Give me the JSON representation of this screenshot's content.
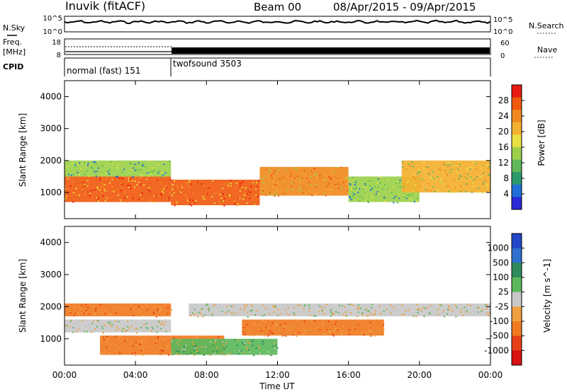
{
  "header": {
    "station": "Inuvik (fitACF)",
    "beam": "Beam 00",
    "date_range": "08/Apr/2015 - 09/Apr/2015"
  },
  "strip_labels": {
    "nsky": "N.Sky",
    "nsearch": "N.Search",
    "freq_line1": "Freq.",
    "freq_line2": "[MHz]",
    "nave": "Nave",
    "cpid": "CPID"
  },
  "noise_ticks_left": [
    "10^5",
    "10^0"
  ],
  "noise_ticks_right": [
    "10^5",
    "10^0"
  ],
  "freq_ticks_left": [
    "18",
    "8"
  ],
  "freq_ticks_right": [
    "60",
    "0"
  ],
  "cpid_segments": [
    {
      "label": "normal (fast) 151",
      "start_hour": 0,
      "end_hour": 6
    },
    {
      "label": "twofsound 3503",
      "start_hour": 6,
      "end_hour": 24
    }
  ],
  "x_axis": {
    "label": "Time UT",
    "ticks": [
      "00:00",
      "04:00",
      "08:00",
      "12:00",
      "16:00",
      "20:00",
      "00:00"
    ]
  },
  "power_panel": {
    "ylabel": "Slant Range [km]",
    "yticks": [
      "4000",
      "3000",
      "2000",
      "1000"
    ],
    "colorbar_label": "Power [dB]",
    "colorbar_ticks": [
      "28",
      "24",
      "20",
      "16",
      "12",
      "8",
      "4"
    ],
    "colors": [
      "#2b2bd8",
      "#1f6fd6",
      "#2a9a6a",
      "#5fb85a",
      "#9cd04a",
      "#e8e040",
      "#f4b030",
      "#f08a20",
      "#f05a10",
      "#e81a10"
    ]
  },
  "velocity_panel": {
    "ylabel": "Slant Range [km]",
    "yticks": [
      "4000",
      "3000",
      "2000",
      "1000"
    ],
    "colorbar_label": "Velocity [m s^-1]",
    "colorbar_ticks": [
      "1000",
      "500",
      "100",
      "25",
      "-25",
      "-100",
      "-500",
      "-1000"
    ],
    "colors": [
      "#2346c8",
      "#2f6fd0",
      "#2e8a5a",
      "#5cb85c",
      "#c8c8c8",
      "#f0a040",
      "#f07a20",
      "#e84018",
      "#d81010"
    ]
  },
  "chart_data": [
    {
      "type": "heatmap",
      "title": "Power",
      "xlabel": "Time UT",
      "ylabel": "Slant Range [km]",
      "xlim": [
        0,
        24
      ],
      "ylim": [
        180,
        4500
      ],
      "colorbar": {
        "label": "Power [dB]",
        "range": [
          0,
          30
        ],
        "ticks": [
          4,
          8,
          12,
          16,
          20,
          24,
          28
        ]
      },
      "bands": [
        {
          "start_hour": 0,
          "end_hour": 6,
          "range_km": [
            700,
            1500
          ],
          "power_db": 28
        },
        {
          "start_hour": 0,
          "end_hour": 6,
          "range_km": [
            1500,
            2000
          ],
          "power_db": 12
        },
        {
          "start_hour": 6,
          "end_hour": 11,
          "range_km": [
            600,
            1400
          ],
          "power_db": 28
        },
        {
          "start_hour": 11,
          "end_hour": 16,
          "range_km": [
            900,
            1800
          ],
          "power_db": 22
        },
        {
          "start_hour": 16,
          "end_hour": 20,
          "range_km": [
            700,
            1500
          ],
          "power_db": 12
        },
        {
          "start_hour": 19,
          "end_hour": 24,
          "range_km": [
            1000,
            2000
          ],
          "power_db": 20
        }
      ]
    },
    {
      "type": "heatmap",
      "title": "Velocity",
      "xlabel": "Time UT",
      "ylabel": "Slant Range [km]",
      "xlim": [
        0,
        24
      ],
      "ylim": [
        180,
        4500
      ],
      "colorbar": {
        "label": "Velocity [m s^-1]",
        "range": [
          -1000,
          1000
        ],
        "ticks": [
          1000,
          500,
          100,
          25,
          -25,
          -100,
          -500,
          -1000
        ]
      },
      "bands": [
        {
          "start_hour": 0,
          "end_hour": 6,
          "range_km": [
            1200,
            1600
          ],
          "velocity_ms": 0
        },
        {
          "start_hour": 0,
          "end_hour": 6,
          "range_km": [
            1700,
            2100
          ],
          "velocity_ms": -300
        },
        {
          "start_hour": 2,
          "end_hour": 9,
          "range_km": [
            500,
            1100
          ],
          "velocity_ms": -200
        },
        {
          "start_hour": 6,
          "end_hour": 12,
          "range_km": [
            500,
            1000
          ],
          "velocity_ms": 150
        },
        {
          "start_hour": 10,
          "end_hour": 18,
          "range_km": [
            1100,
            1600
          ],
          "velocity_ms": -300
        },
        {
          "start_hour": 7,
          "end_hour": 24,
          "range_km": [
            1700,
            2100
          ],
          "velocity_ms": 0
        }
      ]
    }
  ]
}
